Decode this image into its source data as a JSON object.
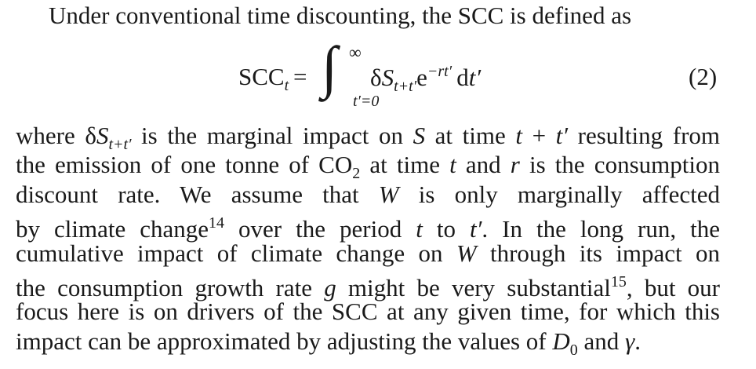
{
  "intro": "Under conventional time discounting, the SCC is defined as",
  "equation": {
    "lhs": "SCC",
    "lhs_sub": "t",
    "eq": "=",
    "integral": "∫",
    "upper": "∞",
    "lower": "t′=0",
    "delta": "δ",
    "s": "S",
    "s_sub": "t+t′",
    "e": "e",
    "e_sup": "−rt′",
    "d": "d",
    "dvar": "t′",
    "number": "(2)"
  },
  "paragraph": {
    "lines": [
      [
        "where ",
        "δ",
        "S",
        "t+t′",
        " is the marginal impact on ",
        "S",
        " at time ",
        "t",
        " + ",
        "t′",
        " resulting from"
      ],
      [
        "the emission of one tonne of CO",
        "2",
        " at time ",
        "t",
        " and ",
        "r",
        " is the consumption"
      ],
      [
        "discount rate. We assume that ",
        "W",
        " is only marginally affected"
      ],
      [
        "by climate change",
        "14",
        " over the period ",
        "t",
        " to ",
        "t′",
        ". In the long run, the"
      ],
      [
        "cumulative impact of climate change on ",
        "W",
        " through its impact on"
      ],
      [
        "the consumption growth rate ",
        "g",
        " might be very substantial",
        "15",
        ", but our"
      ],
      [
        "focus here is on drivers of the SCC at any given time, for which this"
      ],
      [
        "impact can be approximated by adjusting the values of ",
        "D",
        "0",
        " and ",
        "γ",
        "."
      ]
    ]
  }
}
